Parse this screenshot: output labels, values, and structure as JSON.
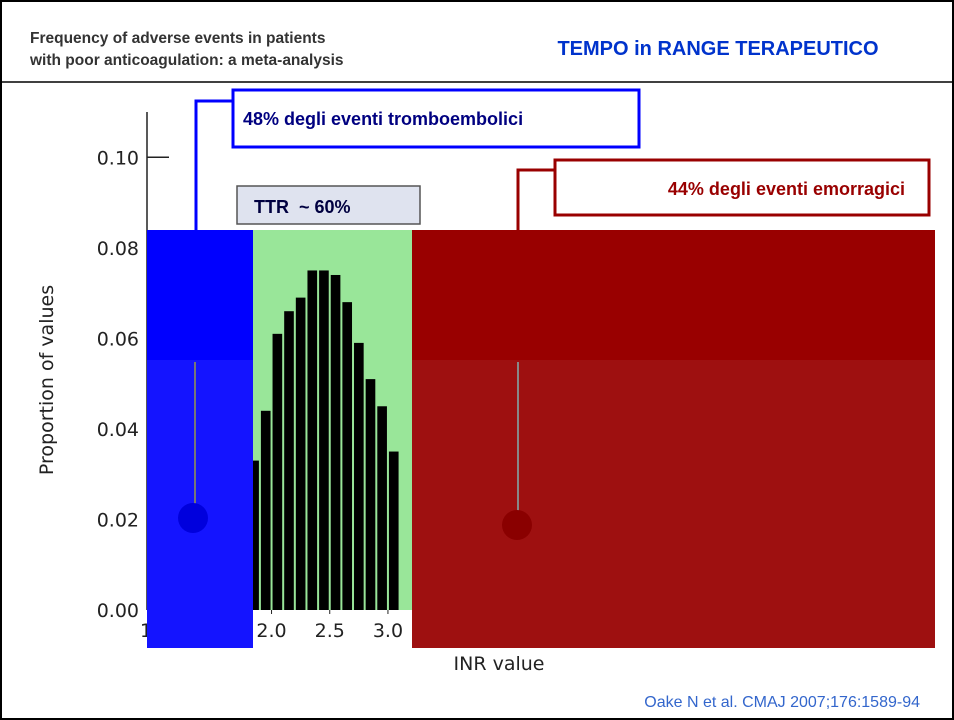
{
  "chart_data": {
    "type": "histogram",
    "title": [
      "Frequency of adverse events in patients",
      "with poor anticoagulation: a meta-analysis"
    ],
    "slide_title": "TEMPO in RANGE TERAPEUTICO",
    "xlabel": "INR value",
    "ylabel": "Proportion of values",
    "bins": [
      1.8,
      1.9,
      2.0,
      2.1,
      2.2,
      2.3,
      2.4,
      2.5,
      2.6,
      2.7,
      2.8,
      2.9,
      3.0,
      3.1
    ],
    "values": [
      0.033,
      0.044,
      0.061,
      0.066,
      0.069,
      0.075,
      0.075,
      0.074,
      0.068,
      0.059,
      0.051,
      0.045,
      0.035
    ],
    "color": "#000000",
    "xlim": [
      0.93,
      7.7
    ],
    "xticks": [
      {
        "value": 1.0,
        "label": "1.0"
      },
      1.5,
      {
        "value": 2.0,
        "label": "2.0"
      },
      2.5,
      {
        "value": 3.0,
        "label": "3.0"
      }
    ],
    "ylim": [
      0,
      0.11
    ],
    "yticks": [
      {
        "value": 0,
        "label": "0.00"
      },
      0.02,
      0.04,
      0.06,
      0.08,
      {
        "value": 0.1,
        "label": "0.10"
      }
    ],
    "annotations": [
      "48% degli eventi tromboembolici",
      "TTR  ~ 60%",
      "44% degli eventi emorragici"
    ],
    "source": "Oake N et al. CMAJ 2007;176:1589-94"
  }
}
